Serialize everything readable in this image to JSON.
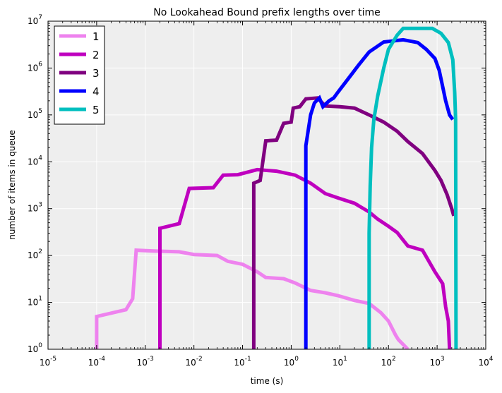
{
  "chart_data": {
    "type": "line",
    "title": "No Lookahead Bound prefix lengths over time",
    "xlabel": "time (s)",
    "ylabel": "number of items in queue",
    "xscale": "log",
    "yscale": "log",
    "xlim": [
      1e-05,
      10000.0
    ],
    "ylim": [
      1,
      10000000.0
    ],
    "grid": true,
    "legend_position": "top-left",
    "x_tick_labels": [
      {
        "base": "10",
        "exp": "-5"
      },
      {
        "base": "10",
        "exp": "-4"
      },
      {
        "base": "10",
        "exp": "-3"
      },
      {
        "base": "10",
        "exp": "-2"
      },
      {
        "base": "10",
        "exp": "-1"
      },
      {
        "base": "10",
        "exp": "0"
      },
      {
        "base": "10",
        "exp": "1"
      },
      {
        "base": "10",
        "exp": "2"
      },
      {
        "base": "10",
        "exp": "3"
      },
      {
        "base": "10",
        "exp": "4"
      }
    ],
    "y_tick_labels": [
      {
        "base": "10",
        "exp": "0"
      },
      {
        "base": "10",
        "exp": "1"
      },
      {
        "base": "10",
        "exp": "2"
      },
      {
        "base": "10",
        "exp": "3"
      },
      {
        "base": "10",
        "exp": "4"
      },
      {
        "base": "10",
        "exp": "5"
      },
      {
        "base": "10",
        "exp": "6"
      },
      {
        "base": "10",
        "exp": "7"
      }
    ],
    "series": [
      {
        "name": "1",
        "color": "#ee82ee",
        "points": [
          [
            0.0001,
            1
          ],
          [
            0.0001,
            5
          ],
          [
            0.0004,
            7
          ],
          [
            0.00055,
            12
          ],
          [
            0.00065,
            130
          ],
          [
            0.0015,
            125
          ],
          [
            0.005,
            120
          ],
          [
            0.01,
            105
          ],
          [
            0.03,
            100
          ],
          [
            0.05,
            75
          ],
          [
            0.1,
            65
          ],
          [
            0.2,
            45
          ],
          [
            0.3,
            34
          ],
          [
            0.7,
            32
          ],
          [
            1.2,
            26
          ],
          [
            2.5,
            18
          ],
          [
            5,
            16
          ],
          [
            9,
            14
          ],
          [
            20,
            11
          ],
          [
            40,
            9.5
          ],
          [
            70,
            6
          ],
          [
            100,
            4
          ],
          [
            140,
            2
          ],
          [
            160,
            1.6
          ],
          [
            250,
            1
          ]
        ]
      },
      {
        "name": "2",
        "color": "#bf00bf",
        "points": [
          [
            0.002,
            1
          ],
          [
            0.002,
            380
          ],
          [
            0.005,
            480
          ],
          [
            0.008,
            2700
          ],
          [
            0.025,
            2800
          ],
          [
            0.04,
            5200
          ],
          [
            0.08,
            5300
          ],
          [
            0.2,
            6800
          ],
          [
            0.5,
            6300
          ],
          [
            1.2,
            5200
          ],
          [
            2.5,
            3500
          ],
          [
            5,
            2100
          ],
          [
            9,
            1700
          ],
          [
            20,
            1300
          ],
          [
            40,
            850
          ],
          [
            60,
            600
          ],
          [
            100,
            420
          ],
          [
            150,
            310
          ],
          [
            250,
            160
          ],
          [
            500,
            130
          ],
          [
            900,
            45
          ],
          [
            1300,
            25
          ],
          [
            1500,
            8
          ],
          [
            1700,
            4
          ],
          [
            1800,
            1
          ]
        ]
      },
      {
        "name": "3",
        "color": "#800080",
        "points": [
          [
            0.17,
            1
          ],
          [
            0.17,
            3500
          ],
          [
            0.23,
            4000
          ],
          [
            0.3,
            28000
          ],
          [
            0.5,
            29000
          ],
          [
            0.7,
            66000
          ],
          [
            1.0,
            70000
          ],
          [
            1.1,
            140000
          ],
          [
            1.5,
            150000
          ],
          [
            2,
            220000
          ],
          [
            3.5,
            230000
          ],
          [
            5,
            155000
          ],
          [
            10,
            150000
          ],
          [
            20,
            140000
          ],
          [
            40,
            100000
          ],
          [
            80,
            70000
          ],
          [
            150,
            45000
          ],
          [
            250,
            27000
          ],
          [
            500,
            15000
          ],
          [
            900,
            6500
          ],
          [
            1200,
            4000
          ],
          [
            1600,
            2000
          ],
          [
            2000,
            1000
          ],
          [
            2200,
            700
          ]
        ]
      },
      {
        "name": "4",
        "color": "#0000ff",
        "points": [
          [
            2,
            1
          ],
          [
            2,
            22000
          ],
          [
            2.5,
            100000
          ],
          [
            3,
            180000
          ],
          [
            3.8,
            230000
          ],
          [
            4.5,
            150000
          ],
          [
            6,
            200000
          ],
          [
            7.5,
            230000
          ],
          [
            9,
            300000
          ],
          [
            15,
            600000
          ],
          [
            25,
            1200000
          ],
          [
            40,
            2200000
          ],
          [
            80,
            3600000
          ],
          [
            200,
            4000000
          ],
          [
            400,
            3500000
          ],
          [
            600,
            2500000
          ],
          [
            900,
            1600000
          ],
          [
            1100,
            900000
          ],
          [
            1300,
            400000
          ],
          [
            1500,
            200000
          ],
          [
            1800,
            100000
          ],
          [
            2100,
            80000
          ]
        ]
      },
      {
        "name": "5",
        "color": "#00bfbf",
        "points": [
          [
            40,
            1
          ],
          [
            40,
            300
          ],
          [
            42,
            3000
          ],
          [
            45,
            20000
          ],
          [
            50,
            80000
          ],
          [
            60,
            250000
          ],
          [
            80,
            1000000
          ],
          [
            100,
            2500000
          ],
          [
            150,
            5000000
          ],
          [
            200,
            7000000
          ],
          [
            800,
            7000000
          ],
          [
            1200,
            5500000
          ],
          [
            1700,
            3500000
          ],
          [
            2100,
            1500000
          ],
          [
            2300,
            300000
          ],
          [
            2400,
            80000
          ],
          [
            2450,
            1
          ]
        ]
      }
    ]
  }
}
